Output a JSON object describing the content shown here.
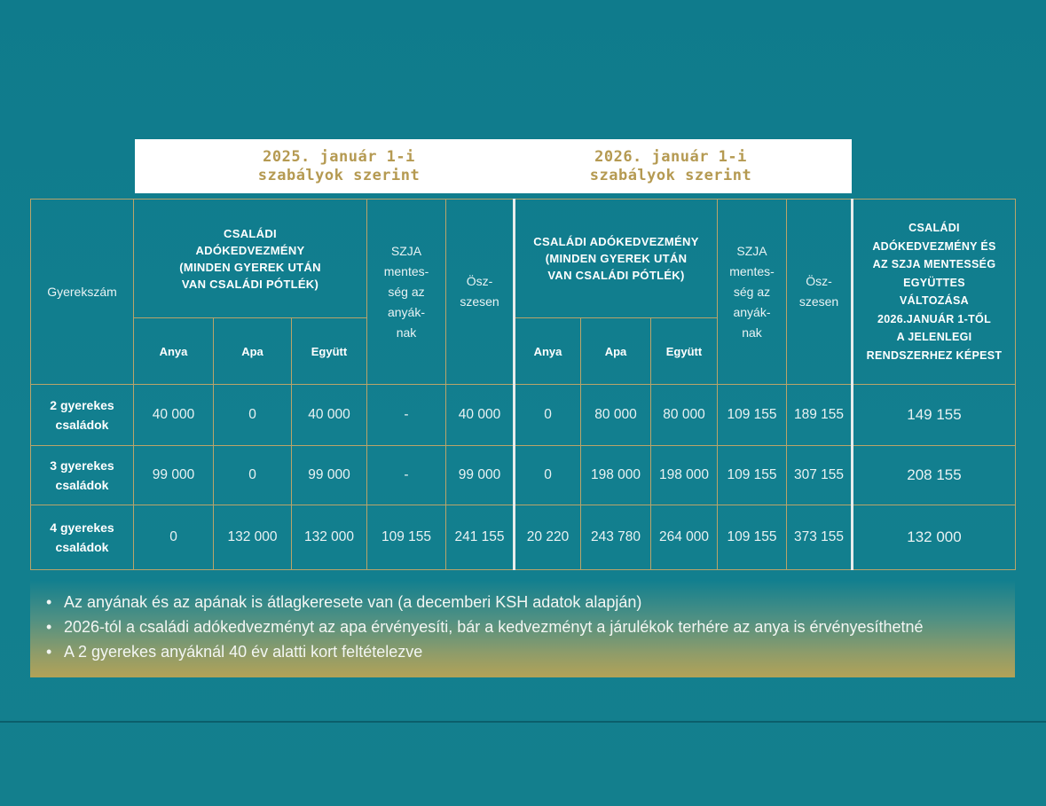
{
  "header": {
    "title_2025": "2025. január 1-i\nszabályok szerint",
    "title_2026": "2026. január 1-i\nszabályok szerint"
  },
  "table": {
    "col_children": "Gyerekszám",
    "col_tax_credit_2025": "CSALÁDI\nADÓKEDVEZMÉNY\n(MINDEN GYEREK UTÁN\nVAN CSALÁDI PÓTLÉK)",
    "col_szja_2025": "SZJA\nmentes-\nség az\nanyák-\nnak",
    "col_total_2025": "Ösz-\nszesen",
    "col_tax_credit_2026": "CSALÁDI ADÓKEDVEZMÉNY\n(MINDEN GYEREK UTÁN\nVAN CSALÁDI PÓTLÉK)",
    "col_szja_2026": "SZJA\nmentes-\nség az\nanyák-\nnak",
    "col_total_2026": "Ösz-\nszesen",
    "col_change": "CSALÁDI\nADÓKEDVEZMÉNY ÉS\nAZ SZJA MENTESSÉG\nEGYÜTTES\nVÁLTOZÁSA\n2026.JANUÁR 1-TŐL\nA JELENLEGI\nRENDSZERHEZ KÉPEST",
    "sub_anya": "Anya",
    "sub_apa": "Apa",
    "sub_egyutt": "Együtt",
    "rows": [
      {
        "label": "2 gyerekes\ncsaládok",
        "anya25": "40 000",
        "apa25": "0",
        "egyutt25": "40 000",
        "szja25": "-",
        "total25": "40 000",
        "anya26": "0",
        "apa26": "80 000",
        "egyutt26": "80 000",
        "szja26": "109 155",
        "total26": "189 155",
        "change": "149 155"
      },
      {
        "label": "3 gyerekes\ncsaládok",
        "anya25": "99 000",
        "apa25": "0",
        "egyutt25": "99 000",
        "szja25": "-",
        "total25": "99 000",
        "anya26": "0",
        "apa26": "198 000",
        "egyutt26": "198 000",
        "szja26": "109 155",
        "total26": "307 155",
        "change": "208 155"
      },
      {
        "label": "4 gyerekes\ncsaládok",
        "anya25": "0",
        "apa25": "132 000",
        "egyutt25": "132 000",
        "szja25": "109 155",
        "total25": "241 155",
        "anya26": "20 220",
        "apa26": "243 780",
        "egyutt26": "264 000",
        "szja26": "109 155",
        "total26": "373 155",
        "change": "132 000"
      }
    ]
  },
  "notes": [
    "Az anyának és az apának is átlagkeresete van (a decemberi KSH adatok alapján)",
    "2026-tól a családi adókedvezményt az apa érvényesíti, bár a kedvezményt a járulékok terhére az anya is érvényesíthetné",
    "A 2 gyerekes anyáknál 40 év alatti kort feltételezve"
  ],
  "colors": {
    "background": "#0f7b8c",
    "gold": "#b59a52",
    "border": "#b9a46a"
  }
}
